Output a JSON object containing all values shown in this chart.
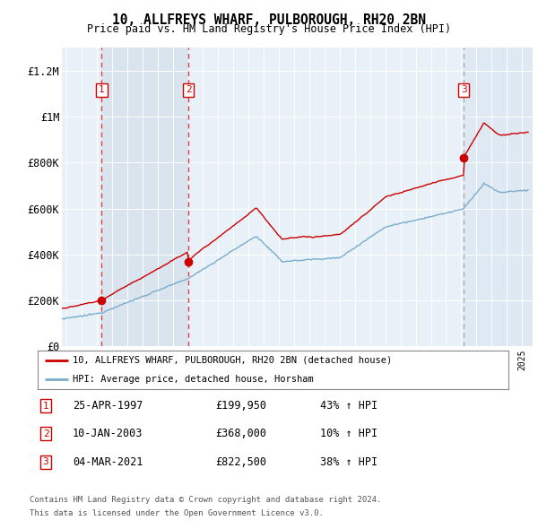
{
  "title": "10, ALLFREYS WHARF, PULBOROUGH, RH20 2BN",
  "subtitle": "Price paid vs. HM Land Registry's House Price Index (HPI)",
  "ylim": [
    0,
    1300000
  ],
  "yticks": [
    0,
    200000,
    400000,
    600000,
    800000,
    1000000,
    1200000
  ],
  "ytick_labels": [
    "£0",
    "£200K",
    "£400K",
    "£600K",
    "£800K",
    "£1M",
    "£1.2M"
  ],
  "sale_times": [
    1997.32,
    2003.03,
    2021.17
  ],
  "sale_prices": [
    199950,
    368000,
    822500
  ],
  "sale_labels": [
    "1",
    "2",
    "3"
  ],
  "sale_pct": [
    "43%",
    "10%",
    "38%"
  ],
  "sale_date_labels": [
    "25-APR-1997",
    "10-JAN-2003",
    "04-MAR-2021"
  ],
  "sale_price_labels": [
    "£199,950",
    "£368,000",
    "£822,500"
  ],
  "legend_line1": "10, ALLFREYS WHARF, PULBOROUGH, RH20 2BN (detached house)",
  "legend_line2": "HPI: Average price, detached house, Horsham",
  "footer1": "Contains HM Land Registry data © Crown copyright and database right 2024.",
  "footer2": "This data is licensed under the Open Government Licence v3.0.",
  "red_line_color": "#cc0000",
  "blue_line_color": "#7aadcc",
  "bg_color_light": "#e8f0f8",
  "bg_color_band": "#ccd9e8",
  "sale_marker_color": "#cc0000",
  "dashed_red_color": "#dd4444",
  "dashed_gray_color": "#aaaaaa",
  "number_box_color": "#cc0000",
  "xlim_start": 1994.7,
  "xlim_end": 2025.7
}
